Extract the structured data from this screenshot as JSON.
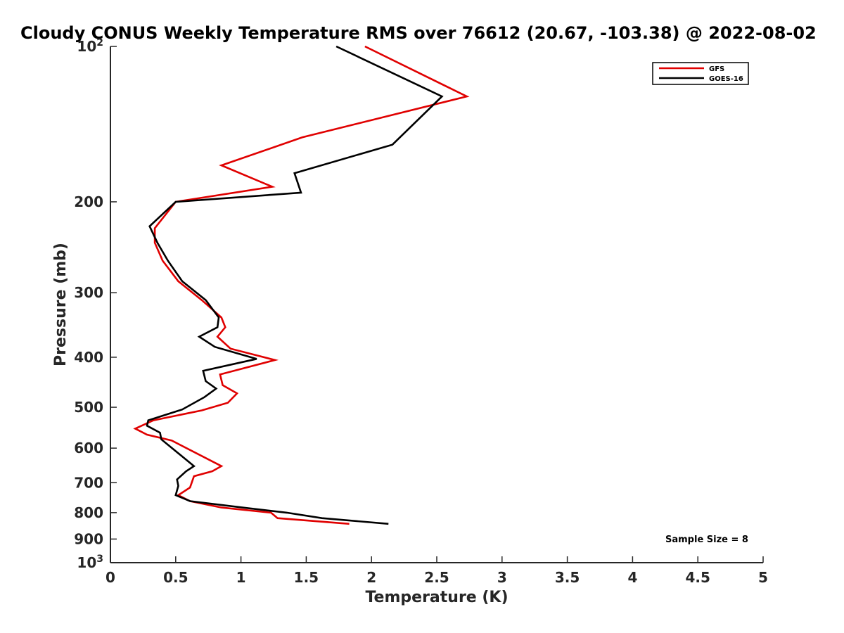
{
  "chart_data": {
    "type": "line",
    "title": "Cloudy CONUS Weekly Temperature RMS over 76612 (20.67, -103.38) @ 2022-08-02",
    "xlabel": "Temperature (K)",
    "ylabel": "Pressure (mb)",
    "xlim": [
      0,
      5
    ],
    "ylim": [
      100,
      1000
    ],
    "yscale": "log",
    "yreversed": true,
    "x_ticks": [
      "0",
      "0.5",
      "1",
      "1.5",
      "2",
      "2.5",
      "3",
      "3.5",
      "4",
      "4.5",
      "5"
    ],
    "y_ticks": [
      {
        "value": 100,
        "base": "10",
        "exp": "2"
      },
      {
        "value": 200,
        "label": "200"
      },
      {
        "value": 300,
        "label": "300"
      },
      {
        "value": 400,
        "label": "400"
      },
      {
        "value": 500,
        "label": "500"
      },
      {
        "value": 600,
        "label": "600"
      },
      {
        "value": 700,
        "label": "700"
      },
      {
        "value": 800,
        "label": "800"
      },
      {
        "value": 900,
        "label": "900"
      },
      {
        "value": 1000,
        "base": "10",
        "exp": "3"
      }
    ],
    "legend_position": "top-right",
    "annotation": "Sample Size = 8",
    "series": [
      {
        "name": "GFS",
        "color": "#e00000",
        "points": [
          [
            1.95,
            100
          ],
          [
            2.73,
            125
          ],
          [
            1.47,
            150
          ],
          [
            0.85,
            170
          ],
          [
            1.24,
            187
          ],
          [
            0.5,
            200
          ],
          [
            0.34,
            225
          ],
          [
            0.34,
            240
          ],
          [
            0.4,
            260
          ],
          [
            0.52,
            285
          ],
          [
            0.7,
            310
          ],
          [
            0.85,
            335
          ],
          [
            0.88,
            350
          ],
          [
            0.82,
            365
          ],
          [
            0.92,
            385
          ],
          [
            1.26,
            405
          ],
          [
            0.84,
            432
          ],
          [
            0.86,
            453
          ],
          [
            0.97,
            470
          ],
          [
            0.9,
            490
          ],
          [
            0.7,
            507
          ],
          [
            0.33,
            530
          ],
          [
            0.19,
            550
          ],
          [
            0.28,
            565
          ],
          [
            0.47,
            580
          ],
          [
            0.85,
            650
          ],
          [
            0.78,
            665
          ],
          [
            0.64,
            680
          ],
          [
            0.61,
            715
          ],
          [
            0.52,
            740
          ],
          [
            0.61,
            760
          ],
          [
            0.85,
            782
          ],
          [
            1.23,
            800
          ],
          [
            1.28,
            820
          ],
          [
            1.83,
            841
          ]
        ]
      },
      {
        "name": "GOES-16",
        "color": "#000000",
        "points": [
          [
            1.73,
            100
          ],
          [
            2.54,
            125
          ],
          [
            2.16,
            155
          ],
          [
            1.41,
            176
          ],
          [
            1.46,
            192
          ],
          [
            0.5,
            200
          ],
          [
            0.3,
            223
          ],
          [
            0.36,
            240
          ],
          [
            0.44,
            260
          ],
          [
            0.55,
            285
          ],
          [
            0.73,
            310
          ],
          [
            0.83,
            335
          ],
          [
            0.82,
            350
          ],
          [
            0.68,
            365
          ],
          [
            0.8,
            382
          ],
          [
            1.12,
            403
          ],
          [
            0.71,
            425
          ],
          [
            0.73,
            445
          ],
          [
            0.81,
            460
          ],
          [
            0.72,
            478
          ],
          [
            0.55,
            505
          ],
          [
            0.29,
            530
          ],
          [
            0.28,
            543
          ],
          [
            0.38,
            560
          ],
          [
            0.39,
            577
          ],
          [
            0.64,
            650
          ],
          [
            0.58,
            665
          ],
          [
            0.51,
            690
          ],
          [
            0.52,
            710
          ],
          [
            0.5,
            740
          ],
          [
            0.61,
            760
          ],
          [
            1.01,
            782
          ],
          [
            1.35,
            800
          ],
          [
            1.62,
            820
          ],
          [
            2.13,
            841
          ]
        ]
      }
    ]
  }
}
